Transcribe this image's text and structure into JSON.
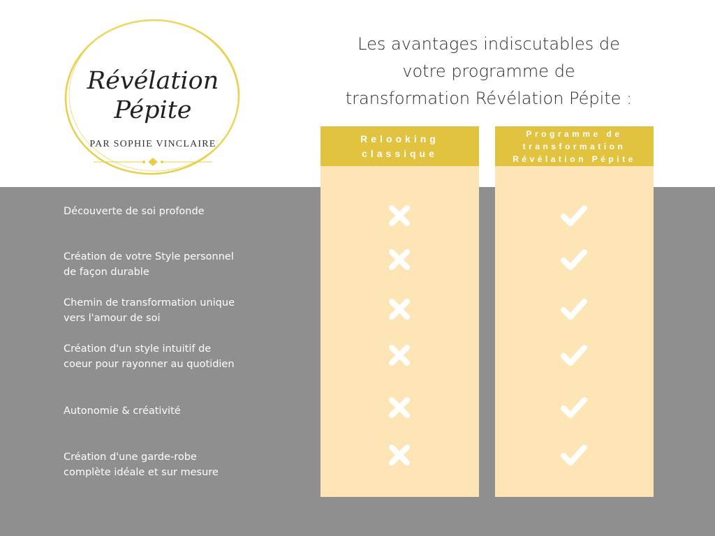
{
  "logo": {
    "title_line1": "Révélation",
    "title_line2": "Pépite",
    "subtitle": "PAR SOPHIE VINCLAIRE",
    "accent_color": "#e8cf4a"
  },
  "heading": {
    "line1": "Les avantages indiscutables de",
    "line2": "votre programme de",
    "line3": "transformation Révélation Pépite :"
  },
  "columns": [
    {
      "header_line1": "Relooking",
      "header_line2": "classique",
      "mark_icon": "cross-icon"
    },
    {
      "header_line1": "Programme de",
      "header_line2": "transformation",
      "header_line3": "Révélation Pépite",
      "mark_icon": "check-icon"
    }
  ],
  "features": [
    {
      "line1": "Découverte de soi profonde"
    },
    {
      "line1": "Création de votre Style personnel",
      "line2": "de façon durable"
    },
    {
      "line1": "Chemin de transformation unique",
      "line2": "vers l'amour de soi"
    },
    {
      "line1": "Création d'un style intuitif de",
      "line2": "coeur pour rayonner au quotidien"
    },
    {
      "line1": "Autonomie & créativité"
    },
    {
      "line1": "Création d'une garde-robe",
      "line2": "complète idéale et sur mesure"
    }
  ],
  "colors": {
    "header_yellow": "#e2c33f",
    "column_cream": "#fde5b5",
    "band_gray": "#8f8f8f",
    "mark_white": "#ffffff"
  }
}
